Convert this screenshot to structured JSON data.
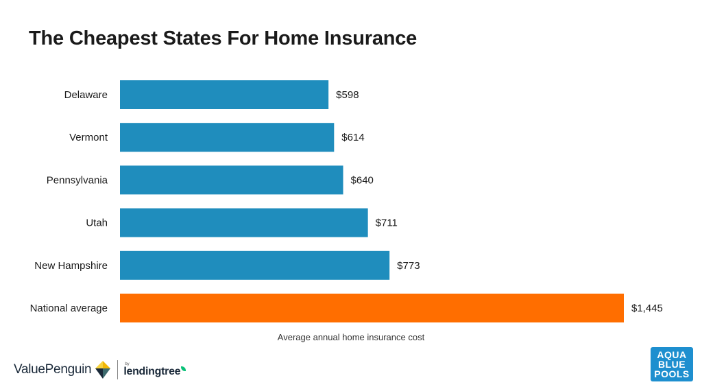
{
  "title": "The Cheapest States For Home Insurance",
  "chart_data": {
    "type": "bar",
    "orientation": "horizontal",
    "categories": [
      "Delaware",
      "Vermont",
      "Pennsylvania",
      "Utah",
      "New Hampshire",
      "National average"
    ],
    "values": [
      598,
      614,
      640,
      711,
      773,
      1445
    ],
    "value_labels": [
      "$598",
      "$614",
      "$640",
      "$711",
      "$773",
      "$1,445"
    ],
    "bar_colors": [
      "#1f8dbd",
      "#1f8dbd",
      "#1f8dbd",
      "#1f8dbd",
      "#1f8dbd",
      "#ff6e00"
    ],
    "title": "The Cheapest States For Home Insurance",
    "xlabel": "Average annual home insurance cost",
    "ylabel": "",
    "xlim": [
      0,
      1445
    ],
    "grid": false,
    "legend": "none"
  },
  "logos": {
    "valuepenguin": "ValuePenguin",
    "by": "by",
    "lendingtree": "lendingtree",
    "aquablue": [
      "AQUA",
      "BLUE",
      "POOLS"
    ]
  },
  "colors": {
    "state_bar": "#1f8dbd",
    "average_bar": "#ff6e00",
    "brand_blue": "#1e8fcf"
  }
}
